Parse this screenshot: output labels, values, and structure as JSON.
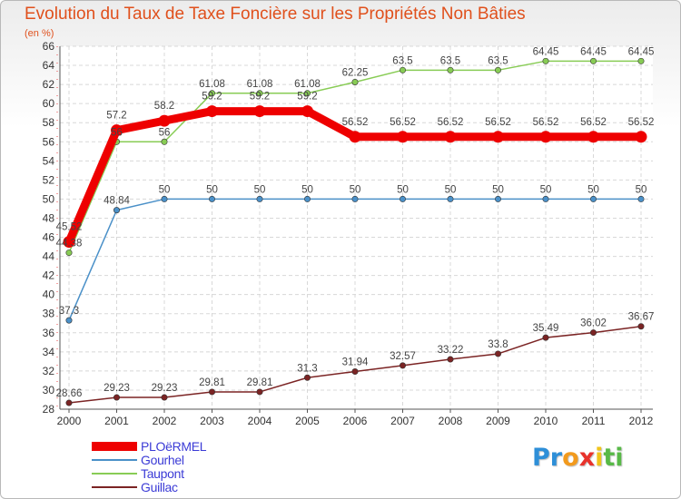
{
  "title": "Evolution du Taux de Taxe Foncière sur les Propriétés Non Bâties",
  "unit_label": "(en %)",
  "logo": {
    "letters": [
      "P",
      "r",
      "o",
      "x",
      "i",
      "t",
      "i"
    ],
    "colors": [
      "#2e8fd8",
      "#2e8fd8",
      "#f29a1d",
      "#e8322b",
      "#f0c419",
      "#58b947",
      "#58b947"
    ]
  },
  "chart_data": {
    "type": "line",
    "title": "Evolution du Taux de Taxe Foncière sur les Propriétés Non Bâties",
    "ylabel": "(en %)",
    "xlabel": "",
    "ylim": [
      28,
      66
    ],
    "yticks": [
      28,
      30,
      32,
      34,
      36,
      38,
      40,
      42,
      44,
      46,
      48,
      50,
      52,
      54,
      56,
      58,
      60,
      62,
      64,
      66
    ],
    "x": [
      "2000",
      "2001",
      "2002",
      "2003",
      "2004",
      "2005",
      "2006",
      "2007",
      "2008",
      "2009",
      "2010",
      "2011",
      "2012"
    ],
    "grid": true,
    "legend_position": "bottom-left",
    "series": [
      {
        "name": "Gourhel",
        "color": "#4a90c8",
        "values": [
          37.3,
          48.84,
          50,
          50,
          50,
          50,
          50,
          50,
          50,
          50,
          50,
          50,
          50
        ],
        "labels": [
          "37.3",
          "48.84",
          "50",
          "50",
          "50",
          "50",
          "50",
          "50",
          "50",
          "50",
          "50",
          "50",
          "50"
        ]
      },
      {
        "name": "Taupont",
        "color": "#88cc55",
        "values": [
          44.38,
          56,
          56,
          61.08,
          61.08,
          61.08,
          62.25,
          63.5,
          63.5,
          63.5,
          64.45,
          64.45,
          64.45
        ],
        "labels": [
          "44.38",
          "56",
          "56",
          "61.08",
          "61.08",
          "61.08",
          "62.25",
          "63.5",
          "63.5",
          "63.5",
          "64.45",
          "64.45",
          "64.45"
        ]
      },
      {
        "name": "Guillac",
        "color": "#7b2424",
        "values": [
          28.66,
          29.23,
          29.23,
          29.81,
          29.81,
          31.3,
          31.94,
          32.57,
          33.22,
          33.8,
          35.49,
          36.02,
          36.67
        ],
        "labels": [
          "28.66",
          "29.23",
          "29.23",
          "29.81",
          "29.81",
          "31.3",
          "31.94",
          "32.57",
          "33.22",
          "33.8",
          "35.49",
          "36.02",
          "36.67"
        ]
      },
      {
        "name": "PLOëRMEL",
        "color": "#ee0000",
        "values": [
          45.52,
          57.2,
          58.2,
          59.2,
          59.2,
          59.2,
          56.52,
          56.52,
          56.52,
          56.52,
          56.52,
          56.52,
          56.52
        ],
        "labels": [
          "45.52",
          "57.2",
          "58.2",
          "59.2",
          "59.2",
          "59.2",
          "56.52",
          "56.52",
          "56.52",
          "56.52",
          "56.52",
          "56.52",
          "56.52"
        ]
      }
    ]
  },
  "legend": [
    {
      "name": "PLOëRMEL",
      "color": "#ee0000"
    },
    {
      "name": "Gourhel",
      "color": "#4a90c8"
    },
    {
      "name": "Taupont",
      "color": "#88cc55"
    },
    {
      "name": "Guillac",
      "color": "#7b2424"
    }
  ]
}
